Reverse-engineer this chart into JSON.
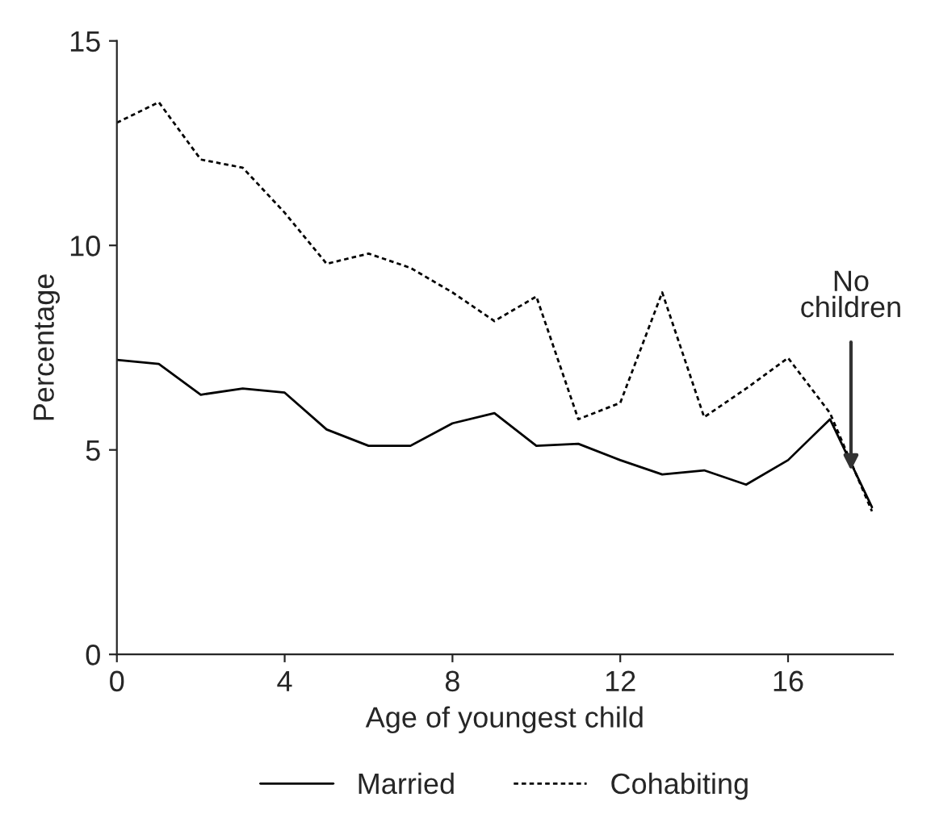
{
  "chart_data": {
    "type": "line",
    "xlabel": "Age of youngest child",
    "ylabel": "Percentage",
    "x": [
      0,
      1,
      2,
      3,
      4,
      5,
      6,
      7,
      8,
      9,
      10,
      11,
      12,
      13,
      14,
      15,
      16,
      17,
      18
    ],
    "series": [
      {
        "name": "Married",
        "color": "#000000",
        "line_style": "solid",
        "values": [
          7.2,
          7.1,
          6.35,
          6.5,
          6.4,
          5.5,
          5.1,
          5.1,
          5.65,
          5.9,
          5.1,
          5.15,
          4.75,
          4.4,
          4.5,
          4.15,
          4.75,
          5.75,
          3.6
        ]
      },
      {
        "name": "Cohabiting",
        "color": "#000000",
        "line_style": "dotted",
        "values": [
          13.0,
          13.5,
          12.1,
          11.9,
          10.8,
          9.55,
          9.8,
          9.45,
          8.85,
          8.15,
          8.75,
          5.75,
          6.15,
          8.85,
          5.8,
          6.5,
          7.25,
          5.9,
          3.5
        ]
      }
    ],
    "annotations": [
      {
        "text": "No\nchildren",
        "x": 17.5,
        "y": 4.5
      }
    ],
    "xlim": [
      0,
      18.5
    ],
    "xticks": [
      0,
      4,
      8,
      12,
      16
    ],
    "ylim": [
      0,
      15
    ],
    "yticks": [
      0,
      5,
      10,
      15
    ],
    "grid": false,
    "legend": "bottom",
    "marker": "none"
  }
}
